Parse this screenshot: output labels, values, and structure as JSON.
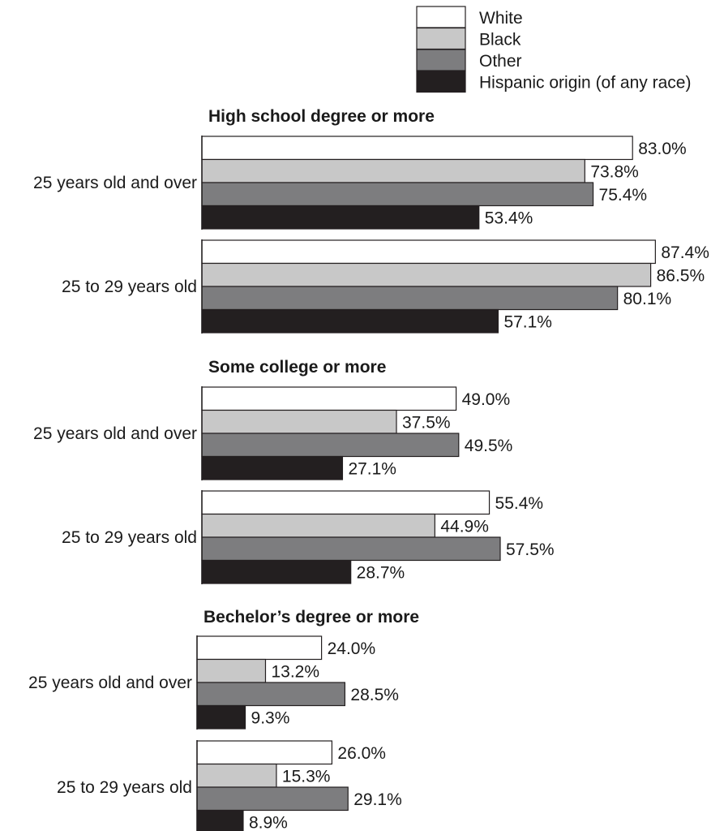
{
  "chart_data": {
    "type": "bar",
    "orientation": "horizontal",
    "legend": [
      {
        "name": "White",
        "color": "#ffffff"
      },
      {
        "name": "Black",
        "color": "#c8c8c8"
      },
      {
        "name": "Other",
        "color": "#7d7d7f"
      },
      {
        "name": "Hispanic origin (of any race)",
        "color": "#231f20"
      }
    ],
    "legend_position": "top-right",
    "grid": false,
    "xlim": [
      0,
      100
    ],
    "panels": [
      {
        "title": "High school degree or more",
        "groups": [
          {
            "label": "25 years old and over",
            "values": [
              83.0,
              73.8,
              75.4,
              53.4
            ],
            "value_labels": [
              "83.0%",
              "73.8%",
              "75.4%",
              "53.4%"
            ]
          },
          {
            "label": "25 to 29 years old",
            "values": [
              87.4,
              86.5,
              80.1,
              57.1
            ],
            "value_labels": [
              "87.4%",
              "86.5%",
              "80.1%",
              "57.1%"
            ]
          }
        ]
      },
      {
        "title": "Some college or more",
        "groups": [
          {
            "label": "25 years old and over",
            "values": [
              49.0,
              37.5,
              49.5,
              27.1
            ],
            "value_labels": [
              "49.0%",
              "37.5%",
              "49.5%",
              "27.1%"
            ]
          },
          {
            "label": "25 to 29 years old",
            "values": [
              55.4,
              44.9,
              57.5,
              28.7
            ],
            "value_labels": [
              "55.4%",
              "44.9%",
              "57.5%",
              "28.7%"
            ]
          }
        ]
      },
      {
        "title": "Bechelor’s degree or more",
        "groups": [
          {
            "label": "25 years old and over",
            "values": [
              24.0,
              13.2,
              28.5,
              9.3
            ],
            "value_labels": [
              "24.0%",
              "13.2%",
              "28.5%",
              "9.3%"
            ]
          },
          {
            "label": "25 to 29 years old",
            "values": [
              26.0,
              15.3,
              29.1,
              8.9
            ],
            "value_labels": [
              "26.0%",
              "15.3%",
              "29.1%",
              "8.9%"
            ]
          }
        ]
      }
    ]
  }
}
